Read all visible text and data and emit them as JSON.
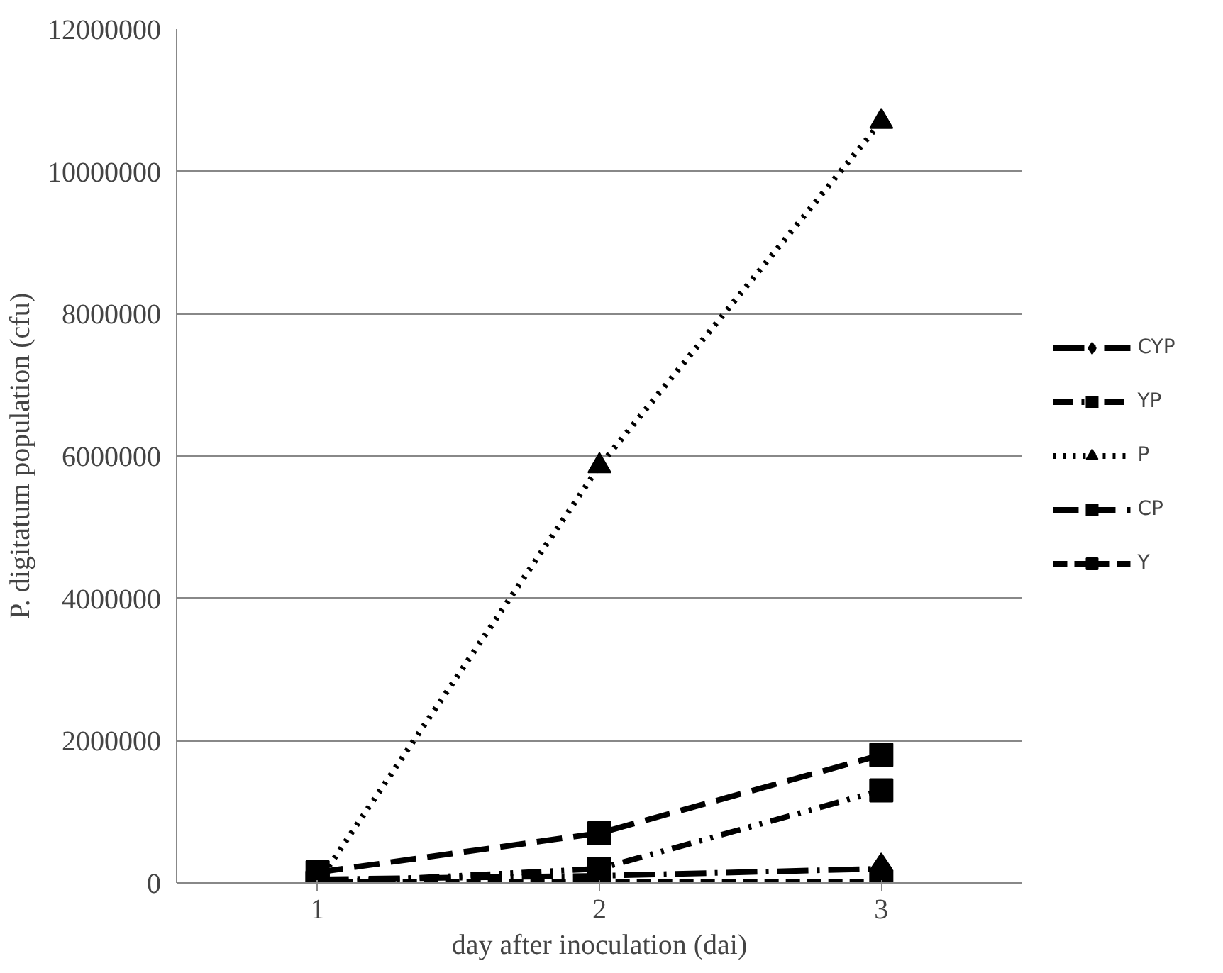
{
  "chart_data": {
    "type": "line",
    "xlabel": "day after inoculation (dai)",
    "ylabel": "P. digitatum population (cfu)",
    "categories": [
      "1",
      "2",
      "3"
    ],
    "series": [
      {
        "name": "CYP",
        "color": "#000000",
        "values": [
          50000,
          100000,
          200000
        ],
        "marker": "diamond",
        "line_style": "dashdot"
      },
      {
        "name": "YP",
        "color": "#000000",
        "values": [
          0,
          200000,
          1300000
        ],
        "marker": "square",
        "line_style": "dashdotdot"
      },
      {
        "name": "P",
        "color": "#000000",
        "values": [
          0,
          5860000,
          10700000
        ],
        "marker": "triangle",
        "line_style": "dotted"
      },
      {
        "name": "CP",
        "color": "#000000",
        "values": [
          150000,
          700000,
          1800000
        ],
        "marker": "square",
        "line_style": "longdash"
      },
      {
        "name": "Y",
        "color": "#000000",
        "values": [
          10000,
          20000,
          20000
        ],
        "marker": "square",
        "line_style": "dashed"
      }
    ],
    "ylim": [
      0,
      12000000
    ],
    "yticks": [
      0,
      2000000,
      4000000,
      6000000,
      8000000,
      10000000,
      12000000
    ],
    "grid": "y",
    "legend": "right"
  }
}
